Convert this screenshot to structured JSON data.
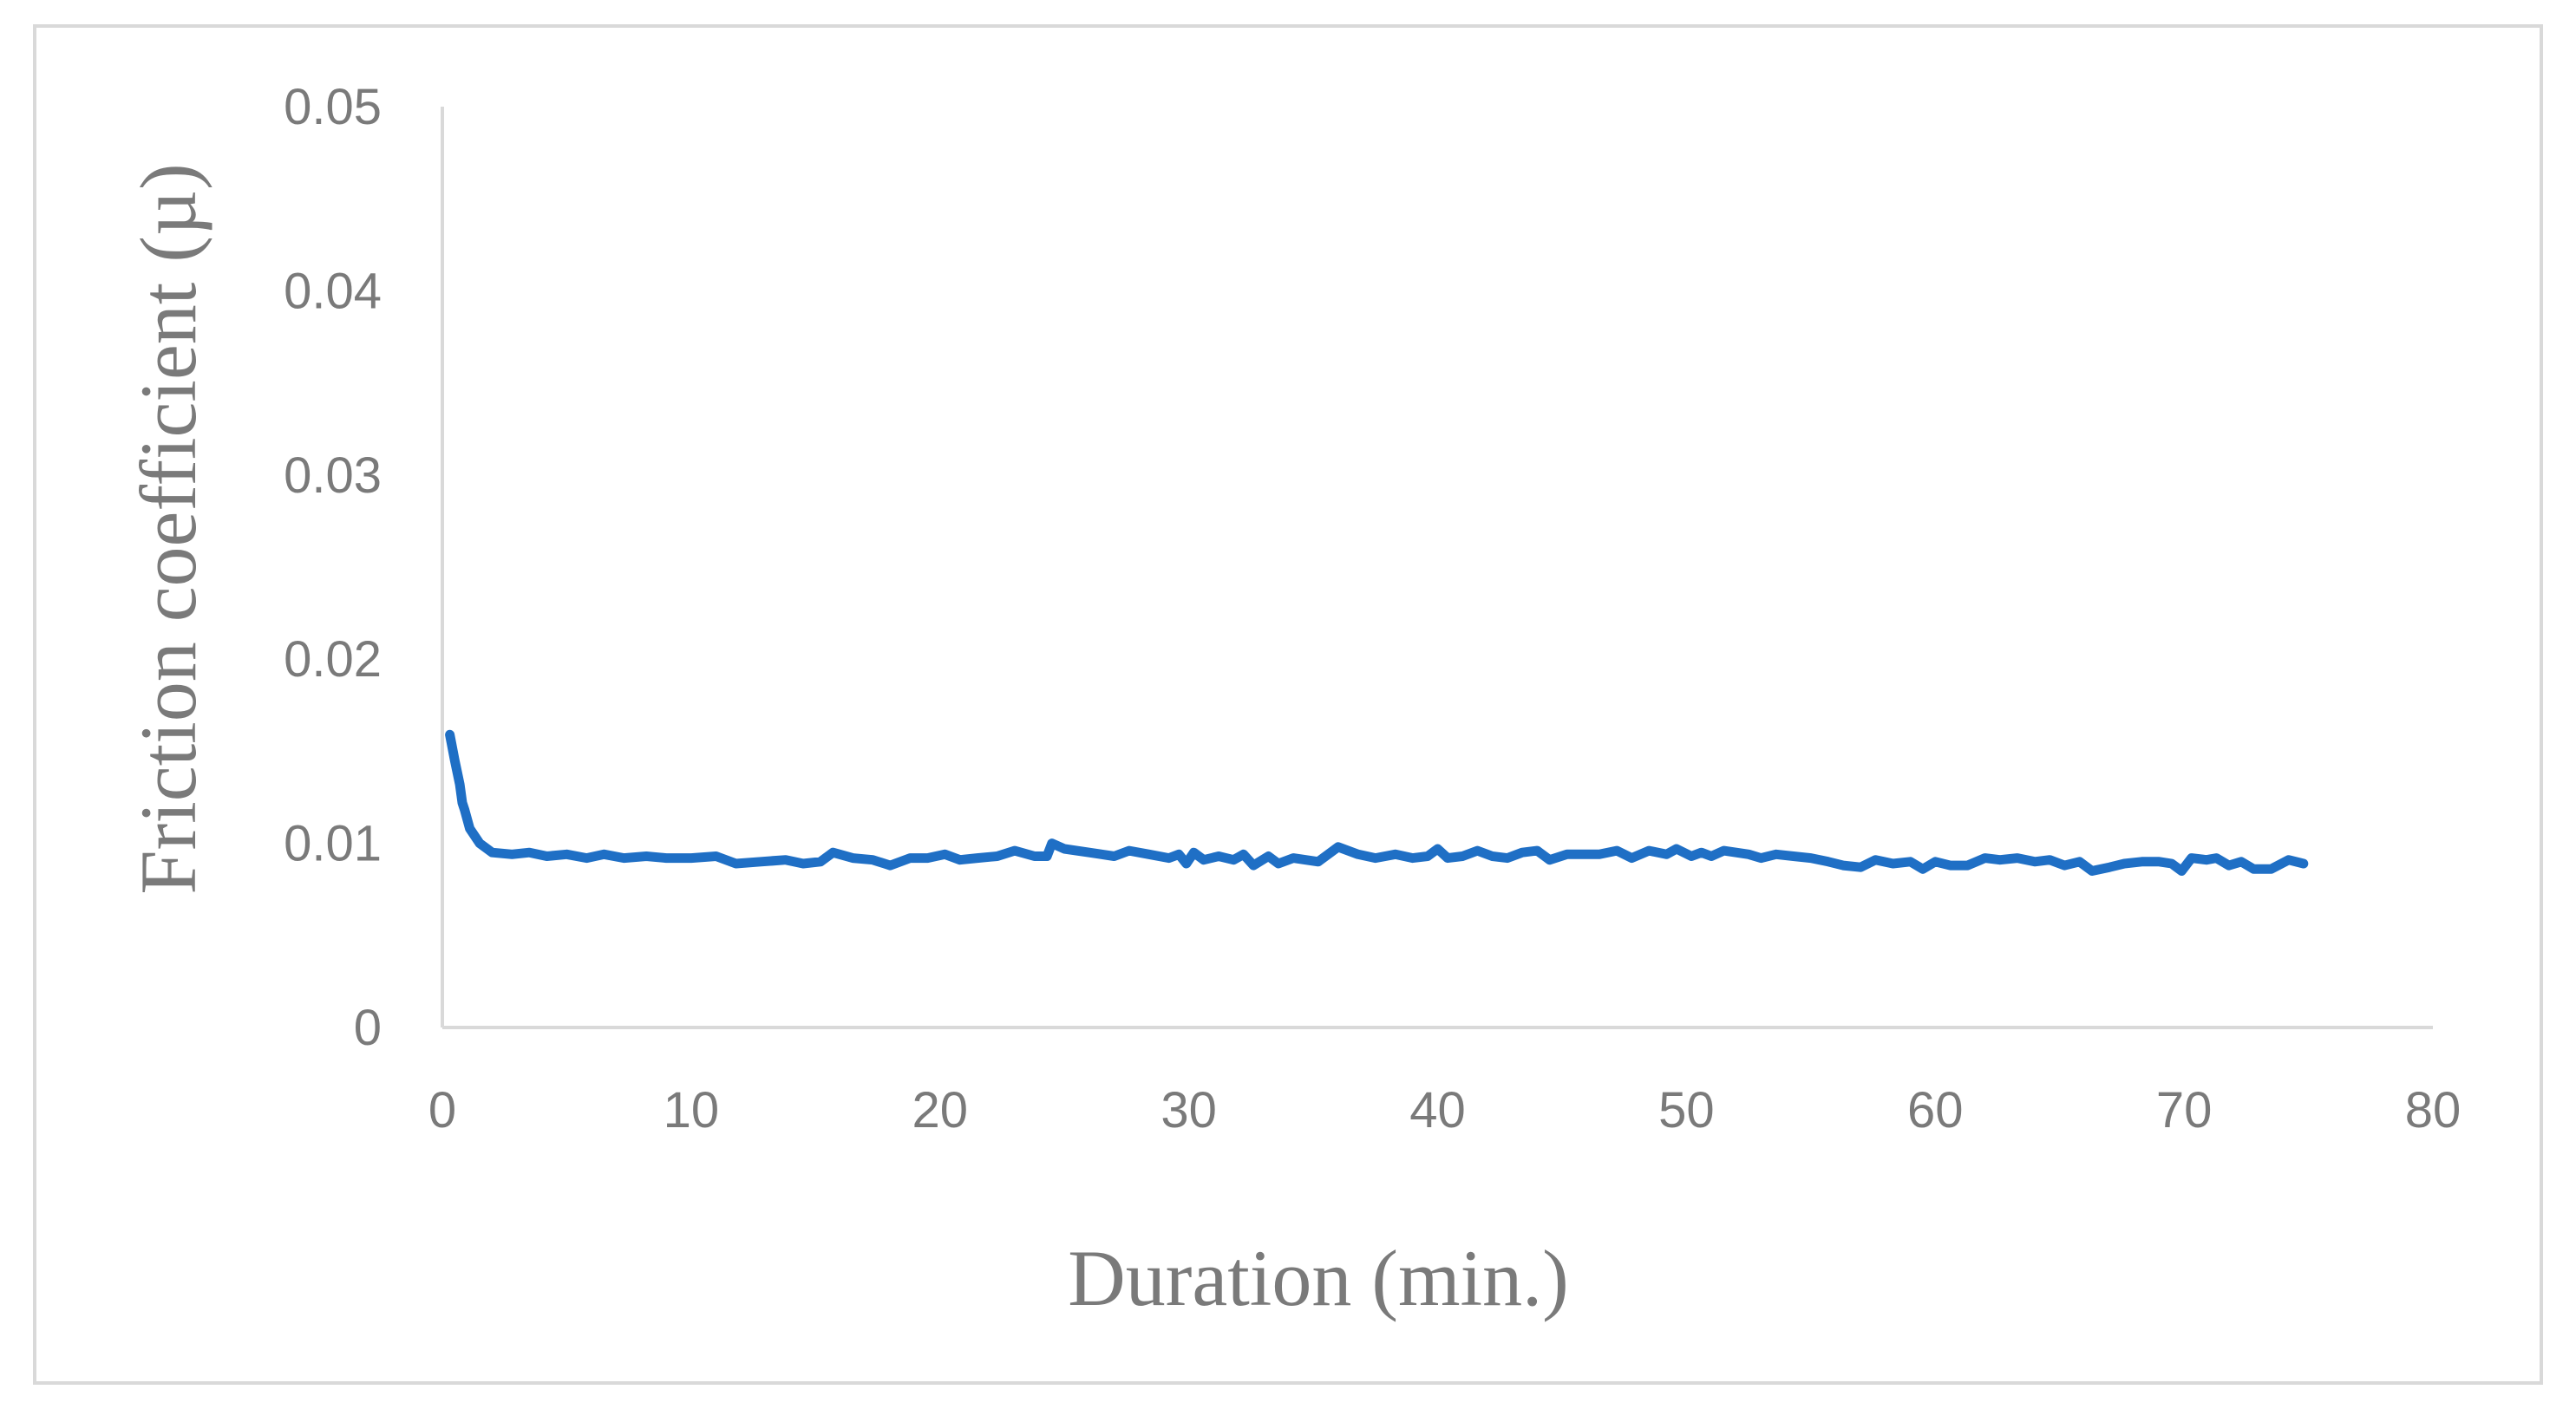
{
  "chart_data": {
    "type": "line",
    "xlabel": "Duration (min.)",
    "ylabel": "Friction coefficient (µ)",
    "xlim": [
      0,
      80
    ],
    "ylim": [
      0,
      0.05
    ],
    "x_ticks": [
      "0",
      "10",
      "20",
      "30",
      "40",
      "50",
      "60",
      "70",
      "80"
    ],
    "y_ticks": [
      "0",
      "0.01",
      "0.02",
      "0.03",
      "0.04",
      "0.05"
    ],
    "grid": false,
    "legend": "none",
    "series": [
      {
        "color": "#1f6fc5",
        "points": [
          [
            0.3,
            0.0159
          ],
          [
            0.5,
            0.0145
          ],
          [
            0.7,
            0.0132
          ],
          [
            0.8,
            0.0122
          ],
          [
            0.9,
            0.0118
          ],
          [
            1.1,
            0.0108
          ],
          [
            1.5,
            0.01
          ],
          [
            2.0,
            0.0095
          ],
          [
            2.8,
            0.0094
          ],
          [
            3.5,
            0.0095
          ],
          [
            4.2,
            0.0093
          ],
          [
            5.0,
            0.0094
          ],
          [
            5.8,
            0.0092
          ],
          [
            6.5,
            0.0094
          ],
          [
            7.3,
            0.0092
          ],
          [
            8.2,
            0.0093
          ],
          [
            9.0,
            0.0092
          ],
          [
            10.0,
            0.0092
          ],
          [
            11.0,
            0.0093
          ],
          [
            11.8,
            0.0089
          ],
          [
            12.8,
            0.009
          ],
          [
            13.8,
            0.0091
          ],
          [
            14.5,
            0.0089
          ],
          [
            15.2,
            0.009
          ],
          [
            15.7,
            0.0095
          ],
          [
            16.5,
            0.0092
          ],
          [
            17.3,
            0.0091
          ],
          [
            18.0,
            0.0088
          ],
          [
            18.8,
            0.0092
          ],
          [
            19.5,
            0.0092
          ],
          [
            20.2,
            0.0094
          ],
          [
            20.8,
            0.0091
          ],
          [
            21.5,
            0.0092
          ],
          [
            22.3,
            0.0093
          ],
          [
            23.0,
            0.0096
          ],
          [
            23.8,
            0.0093
          ],
          [
            24.3,
            0.0093
          ],
          [
            24.5,
            0.01
          ],
          [
            25.0,
            0.0097
          ],
          [
            26.0,
            0.0095
          ],
          [
            27.0,
            0.0093
          ],
          [
            27.6,
            0.0096
          ],
          [
            28.4,
            0.0094
          ],
          [
            29.2,
            0.0092
          ],
          [
            29.6,
            0.0094
          ],
          [
            29.9,
            0.0089
          ],
          [
            30.2,
            0.0095
          ],
          [
            30.6,
            0.0091
          ],
          [
            31.2,
            0.0093
          ],
          [
            31.8,
            0.0091
          ],
          [
            32.2,
            0.0094
          ],
          [
            32.6,
            0.0088
          ],
          [
            33.2,
            0.0093
          ],
          [
            33.6,
            0.0089
          ],
          [
            34.2,
            0.0092
          ],
          [
            35.2,
            0.009
          ],
          [
            36.0,
            0.0098
          ],
          [
            36.8,
            0.0094
          ],
          [
            37.5,
            0.0092
          ],
          [
            38.3,
            0.0094
          ],
          [
            39.0,
            0.0092
          ],
          [
            39.6,
            0.0093
          ],
          [
            40.0,
            0.0097
          ],
          [
            40.4,
            0.0092
          ],
          [
            41.0,
            0.0093
          ],
          [
            41.6,
            0.0096
          ],
          [
            42.2,
            0.0093
          ],
          [
            42.8,
            0.0092
          ],
          [
            43.4,
            0.0095
          ],
          [
            44.0,
            0.0096
          ],
          [
            44.5,
            0.0091
          ],
          [
            45.2,
            0.0094
          ],
          [
            46.5,
            0.0094
          ],
          [
            47.2,
            0.0096
          ],
          [
            47.8,
            0.0092
          ],
          [
            48.5,
            0.0096
          ],
          [
            49.2,
            0.0094
          ],
          [
            49.6,
            0.0097
          ],
          [
            50.2,
            0.0093
          ],
          [
            50.6,
            0.0095
          ],
          [
            51.0,
            0.0093
          ],
          [
            51.5,
            0.0096
          ],
          [
            52.5,
            0.0094
          ],
          [
            53.0,
            0.0092
          ],
          [
            53.6,
            0.0094
          ],
          [
            54.3,
            0.0093
          ],
          [
            55.0,
            0.0092
          ],
          [
            55.7,
            0.009
          ],
          [
            56.3,
            0.0088
          ],
          [
            57.0,
            0.0087
          ],
          [
            57.6,
            0.0091
          ],
          [
            58.3,
            0.0089
          ],
          [
            59.0,
            0.009
          ],
          [
            59.5,
            0.0086
          ],
          [
            60.0,
            0.009
          ],
          [
            60.6,
            0.0088
          ],
          [
            61.3,
            0.0088
          ],
          [
            62.0,
            0.0092
          ],
          [
            62.6,
            0.0091
          ],
          [
            63.3,
            0.0092
          ],
          [
            64.0,
            0.009
          ],
          [
            64.6,
            0.0091
          ],
          [
            65.2,
            0.0088
          ],
          [
            65.8,
            0.009
          ],
          [
            66.3,
            0.0085
          ],
          [
            67.0,
            0.0087
          ],
          [
            67.6,
            0.0089
          ],
          [
            68.3,
            0.009
          ],
          [
            69.0,
            0.009
          ],
          [
            69.5,
            0.0089
          ],
          [
            69.9,
            0.0085
          ],
          [
            70.3,
            0.0092
          ],
          [
            70.9,
            0.0091
          ],
          [
            71.3,
            0.0092
          ],
          [
            71.8,
            0.0088
          ],
          [
            72.3,
            0.009
          ],
          [
            72.8,
            0.0086
          ],
          [
            73.5,
            0.0086
          ],
          [
            74.2,
            0.0091
          ],
          [
            74.8,
            0.0089
          ]
        ]
      }
    ]
  }
}
